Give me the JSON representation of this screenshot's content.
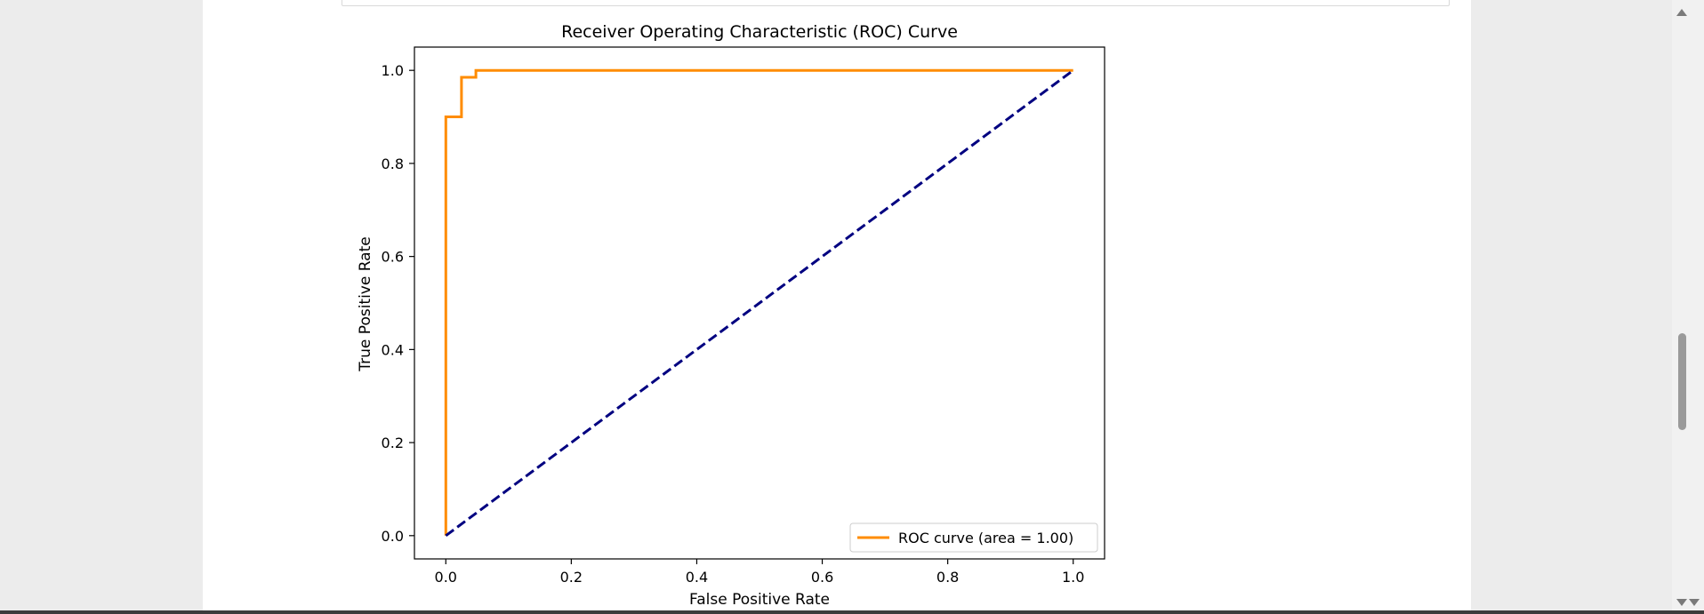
{
  "chart_data": {
    "type": "line",
    "title": "Receiver Operating Characteristic (ROC) Curve",
    "xlabel": "False Positive Rate",
    "ylabel": "True Positive Rate",
    "xlim": [
      -0.05,
      1.05
    ],
    "ylim": [
      -0.05,
      1.05
    ],
    "xticks": [
      0.0,
      0.2,
      0.4,
      0.6,
      0.8,
      1.0
    ],
    "yticks": [
      0.0,
      0.2,
      0.4,
      0.6,
      0.8,
      1.0
    ],
    "xtick_labels": [
      "0.0",
      "0.2",
      "0.4",
      "0.6",
      "0.8",
      "1.0"
    ],
    "ytick_labels": [
      "0.0",
      "0.2",
      "0.4",
      "0.6",
      "0.8",
      "1.0"
    ],
    "grid": false,
    "legend_position": "lower-right",
    "series": [
      {
        "name": "ROC curve (area = 1.00)",
        "color": "#ff8c00",
        "style": "solid",
        "x": [
          0.0,
          0.0,
          0.025,
          0.025,
          0.048,
          0.048,
          1.0
        ],
        "y": [
          0.0,
          0.9,
          0.9,
          0.985,
          0.985,
          1.0,
          1.0
        ]
      },
      {
        "name": "",
        "color": "#000080",
        "style": "dashed",
        "x": [
          0.0,
          1.0
        ],
        "y": [
          0.0,
          1.0
        ]
      }
    ]
  }
}
